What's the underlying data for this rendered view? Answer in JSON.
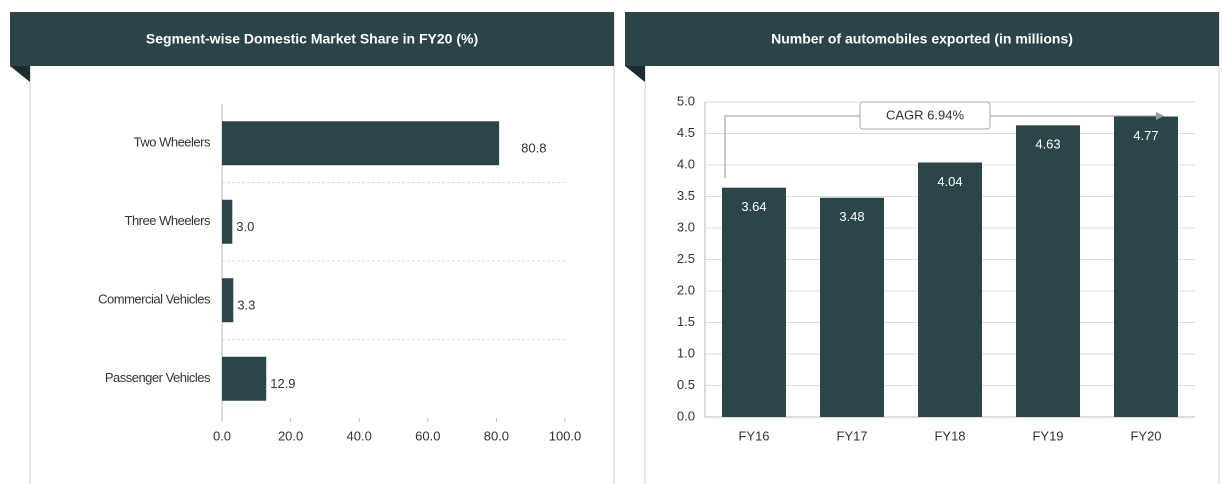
{
  "chart_data": [
    {
      "type": "hbar",
      "title": "Segment-wise Domestic Market Share in FY20 (%)",
      "categories": [
        "Two Wheelers",
        "Three Wheelers",
        "Commercial Vehicles",
        "Passenger Vehicles"
      ],
      "values": [
        80.8,
        3,
        3.3,
        12.9
      ],
      "value_labels": [
        "80.8",
        "3.0",
        "3.3",
        "12.9"
      ],
      "color": "#2b4649",
      "xlim": [
        0,
        100
      ],
      "xticks": [
        {
          "value": 0,
          "label": "0.0"
        },
        {
          "value": 20,
          "label": "20.0"
        },
        {
          "value": 40,
          "label": "40.0"
        },
        {
          "value": 60,
          "label": "60.0"
        },
        {
          "value": 80,
          "label": "80.0"
        },
        {
          "value": 100,
          "label": "100.0"
        }
      ],
      "grid": true
    },
    {
      "type": "bar",
      "title": "Number of automobiles exported (in millions)",
      "categories": [
        "FY16",
        "FY17",
        "FY18",
        "FY19",
        "FY20"
      ],
      "values": [
        3.64,
        3.48,
        4.04,
        4.63,
        4.77
      ],
      "color": "#2b4649",
      "ylim": [
        0,
        5
      ],
      "yticks": [
        {
          "value": 0,
          "label": "0.0"
        },
        0.5,
        {
          "value": 1,
          "label": "1.0"
        },
        1.5,
        {
          "value": 2,
          "label": "2.0"
        },
        2.5,
        {
          "value": 3,
          "label": "3.0"
        },
        3.5,
        {
          "value": 4,
          "label": "4.0"
        },
        4.5,
        {
          "value": 5,
          "label": "5.0"
        }
      ],
      "annotation": "CAGR 6.94%",
      "grid": true
    }
  ]
}
